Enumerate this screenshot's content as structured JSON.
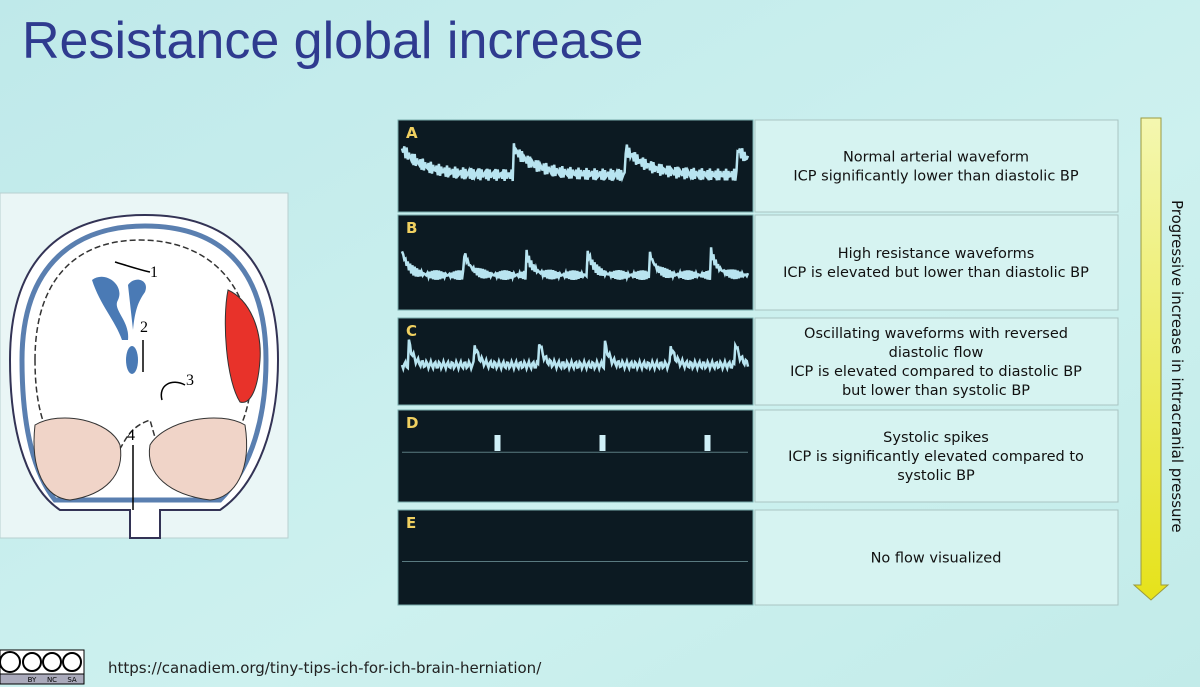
{
  "title": "Resistance global increase",
  "panels": [
    {
      "letter": "A",
      "lines": [
        "Normal arterial waveform",
        "ICP significantly lower than diastolic BP"
      ]
    },
    {
      "letter": "B",
      "lines": [
        "High resistance waveforms",
        "ICP is elevated but lower than diastolic BP"
      ]
    },
    {
      "letter": "C",
      "lines": [
        "Oscillating waveforms with reversed",
        "diastolic flow",
        "ICP is elevated compared to diastolic BP",
        "but lower than systolic BP"
      ]
    },
    {
      "letter": "D",
      "lines": [
        "Systolic spikes",
        "ICP is significantly elevated compared to",
        "systolic BP"
      ]
    },
    {
      "letter": "E",
      "lines": [
        "No flow visualized"
      ]
    }
  ],
  "side_label": "Progressive increase in intracranial pressure",
  "diagram_labels": [
    "1",
    "2",
    "3",
    "4"
  ],
  "badge_labels": [
    "BY",
    "NC",
    "SA"
  ],
  "url": "https://canadiem.org/tiny-tips-ich-for-ich-brain-herniation/"
}
